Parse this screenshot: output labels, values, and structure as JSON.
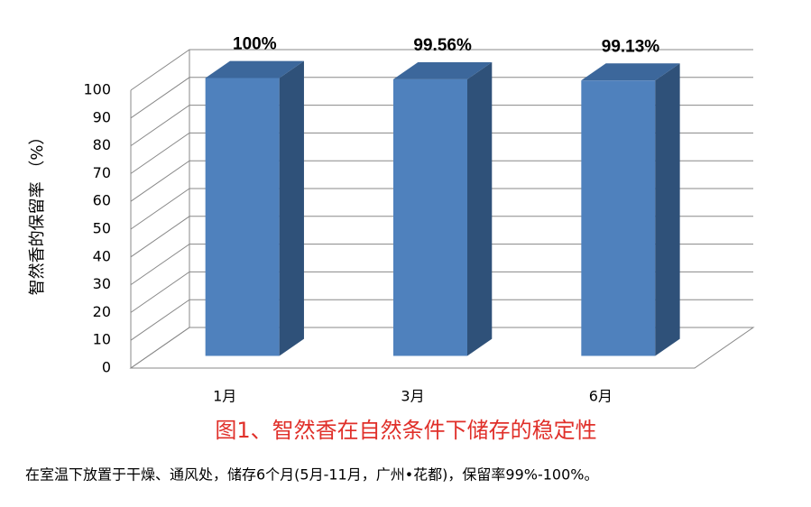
{
  "chart_data": {
    "type": "bar3d",
    "y_label": "智然香的保留率 （%）",
    "categories": [
      "1月",
      "3月",
      "6月"
    ],
    "values": [
      100,
      99.56,
      99.13
    ],
    "value_labels": [
      "100%",
      "99.56%",
      "99.13%"
    ],
    "color": "#4f81bd",
    "ylim": [
      0,
      100
    ],
    "yticks": [
      0,
      10,
      20,
      30,
      40,
      50,
      60,
      70,
      80,
      90,
      100
    ],
    "grid": true
  },
  "caption": "图1、智然香在自然条件下储存的稳定性",
  "note": "在室温下放置于干燥、通风处，储存6个月(5月-11月，广州•花都)，保留率99%-100%。"
}
